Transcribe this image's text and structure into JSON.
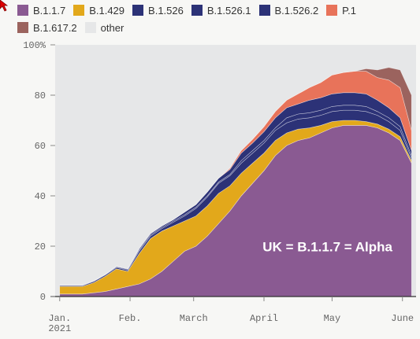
{
  "chart_data": {
    "type": "area",
    "stacked": true,
    "ylim": [
      0,
      100
    ],
    "y_ticks": [
      0,
      20,
      40,
      60,
      80,
      100
    ],
    "y_tick_labels": [
      "0",
      "20",
      "40",
      "60",
      "80",
      "100%"
    ],
    "x_ticks": [
      {
        "x": 0,
        "label": [
          "Jan.",
          "2021"
        ]
      },
      {
        "x": 31,
        "label": [
          "Feb."
        ]
      },
      {
        "x": 59,
        "label": [
          "March"
        ]
      },
      {
        "x": 90,
        "label": [
          "April"
        ]
      },
      {
        "x": 120,
        "label": [
          "May"
        ]
      },
      {
        "x": 151,
        "label": [
          "June"
        ]
      }
    ],
    "x": [
      0,
      5,
      10,
      15,
      20,
      25,
      30,
      35,
      40,
      45,
      50,
      55,
      60,
      65,
      70,
      75,
      80,
      85,
      90,
      95,
      100,
      105,
      110,
      115,
      120,
      125,
      130,
      135,
      140,
      145,
      150,
      155
    ],
    "series": [
      {
        "name": "B.1.1.7",
        "color": "#8a5a92",
        "values": [
          1,
          1,
          1,
          1.5,
          2,
          3,
          4,
          5,
          7,
          10,
          14,
          18,
          20,
          24,
          29,
          34,
          40,
          45,
          50,
          56,
          60,
          62,
          63,
          65,
          67,
          68,
          68,
          68,
          67,
          65,
          62,
          53
        ]
      },
      {
        "name": "B.1.429",
        "color": "#e2a81b",
        "values": [
          3,
          3,
          3,
          4,
          6,
          8,
          6,
          12,
          16,
          16,
          14,
          12,
          12,
          12,
          12,
          10,
          9,
          8,
          7,
          6,
          5,
          4.5,
          4,
          3,
          2.5,
          2,
          2,
          1.5,
          1.5,
          1.5,
          1.5,
          1
        ]
      },
      {
        "name": "B.1.526",
        "color": "#2c3277",
        "values": [
          0.3,
          0.3,
          0.3,
          0.5,
          0.5,
          0.5,
          0.5,
          1,
          1,
          1,
          1.5,
          2,
          3,
          3.5,
          4,
          4,
          4,
          4,
          4,
          4,
          4,
          4,
          4,
          4,
          4,
          4,
          4,
          4,
          3.5,
          3,
          2.5,
          1
        ]
      },
      {
        "name": "B.1.526.1",
        "color": "#2c3277",
        "values": [
          0.2,
          0.2,
          0.2,
          0.2,
          0.2,
          0.3,
          0.3,
          0.5,
          0.5,
          0.5,
          0.5,
          0.5,
          0.5,
          0.5,
          0.5,
          0.5,
          1,
          1,
          1,
          1,
          2,
          2,
          2,
          2,
          2,
          2,
          2,
          2,
          1.5,
          1.5,
          1.5,
          1
        ]
      },
      {
        "name": "B.1.526.2",
        "color": "#2c3277",
        "values": [
          0,
          0,
          0,
          0,
          0,
          0.2,
          0.2,
          0.5,
          0.5,
          0.5,
          0.5,
          1,
          1,
          1.5,
          1.5,
          2,
          3,
          3,
          3.5,
          4,
          4,
          4,
          5,
          5,
          5,
          5,
          5,
          5,
          4.5,
          4,
          3.5,
          2
        ]
      },
      {
        "name": "P.1",
        "color": "#e8735a",
        "values": [
          0,
          0,
          0,
          0,
          0,
          0,
          0,
          0,
          0,
          0,
          0,
          0,
          0,
          0,
          0,
          0.5,
          1,
          1.5,
          2,
          2.5,
          3,
          4,
          5,
          6,
          7.5,
          8,
          8.5,
          9,
          9,
          11,
          12,
          8
        ]
      },
      {
        "name": "B.1.617.2",
        "color": "#9b635e",
        "values": [
          0,
          0,
          0,
          0,
          0,
          0,
          0,
          0,
          0,
          0,
          0,
          0,
          0,
          0,
          0,
          0,
          0,
          0,
          0,
          0,
          0,
          0,
          0,
          0,
          0,
          0,
          0,
          1,
          3,
          5,
          7,
          14
        ]
      }
    ],
    "legend": {
      "placement": "top",
      "entries": [
        {
          "label": "B.1.1.7",
          "color": "#8a5a92"
        },
        {
          "label": "B.1.429",
          "color": "#e2a81b"
        },
        {
          "label": "B.1.526",
          "color": "#2c3277"
        },
        {
          "label": "B.1.526.1",
          "color": "#2c3277"
        },
        {
          "label": "B.1.526.2",
          "color": "#2c3277"
        },
        {
          "label": "P.1",
          "color": "#e8735a"
        },
        {
          "label": "B.1.617.2",
          "color": "#9b635e"
        },
        {
          "label": "other",
          "color": "#e6e7e8"
        }
      ]
    },
    "other_color": "#e6e7e8",
    "annotation": {
      "text": "UK = B.1.1.7 = Alpha",
      "x": 118,
      "y": 18
    },
    "grid": false
  }
}
